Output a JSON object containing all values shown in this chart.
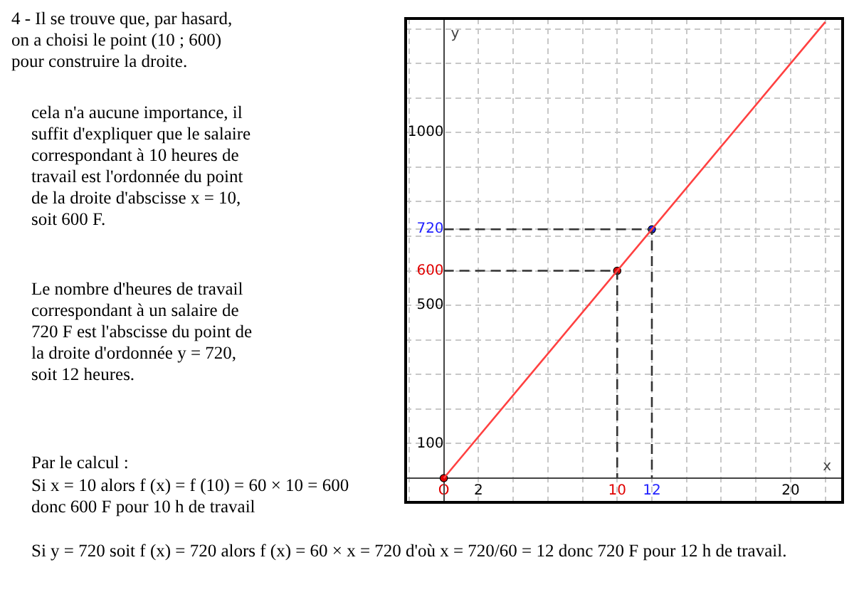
{
  "chart_data": {
    "type": "line",
    "xlabel": "x",
    "ylabel": "y",
    "xlim": [
      -2.2,
      23
    ],
    "ylim": [
      -70,
      1330
    ],
    "xticks": [
      {
        "value": -2,
        "label": null
      },
      {
        "value": 0,
        "label": "O"
      },
      2,
      {
        "value": 4,
        "label": null
      },
      {
        "value": 6,
        "label": null
      },
      {
        "value": 8,
        "label": null
      },
      10,
      12,
      {
        "value": 14,
        "label": null
      },
      {
        "value": 16,
        "label": null
      },
      {
        "value": 18,
        "label": null
      },
      20,
      {
        "value": 22,
        "label": null
      }
    ],
    "yticks": [
      {
        "value": 0,
        "label": null
      },
      100,
      {
        "value": 200,
        "label": null
      },
      {
        "value": 300,
        "label": null
      },
      {
        "value": 400,
        "label": null
      },
      500,
      600,
      720,
      {
        "value": 700,
        "label": null
      },
      {
        "value": 800,
        "label": null
      },
      {
        "value": 900,
        "label": null
      },
      1000,
      {
        "value": 1100,
        "label": null
      },
      {
        "value": 1200,
        "label": null
      },
      {
        "value": 1300,
        "label": null
      }
    ],
    "grid": true,
    "series": [
      {
        "type": "line",
        "color": "#ff4040",
        "x": [
          0,
          22
        ],
        "values": [
          0,
          1320
        ],
        "line_style": "solid",
        "marker": "none"
      },
      {
        "type": "line",
        "color": "#333333",
        "x": [
          0,
          10,
          10
        ],
        "values": [
          600,
          600,
          0
        ],
        "line_style": "dashed",
        "marker": "none"
      },
      {
        "type": "line",
        "color": "#333333",
        "x": [
          0,
          12,
          12
        ],
        "values": [
          720,
          720,
          0
        ],
        "line_style": "dashed",
        "marker": "none"
      },
      {
        "type": "scatter",
        "x": [
          0,
          10,
          12
        ],
        "values": [
          0,
          600,
          720
        ],
        "colors": [
          "#e00000",
          "#e00000",
          "#2020ff"
        ],
        "marker": "circle"
      }
    ],
    "annotations": [
      "4 - Il se trouve que, par hasard,\non a choisi le point (10 ; 600)\npour construire la droite.",
      "cela n'a aucune importance, il\nsuffit d'expliquer que le salaire\ncorrespondant à 10 heures de\ntravail est l'ordonnée du point\nde la droite d'abscisse x = 10,\nsoit 600 F.",
      "Le nombre d'heures de travail\ncorrespondant à un salaire de\n720 F est l'abscisse du point de\nla droite d'ordonnée y = 720,\nsoit 12 heures.",
      "Par le calcul :",
      "Si x = 10 alors f (x) = f (10) = 60 × 10 = 600\ndonc 600 F pour 10 h de travail",
      "Si y = 720 soit f (x) = 720 alors f (x) = 60 × x = 720 d'où x = 720/60 = 12 donc 720 F pour 12 h de travail."
    ]
  }
}
